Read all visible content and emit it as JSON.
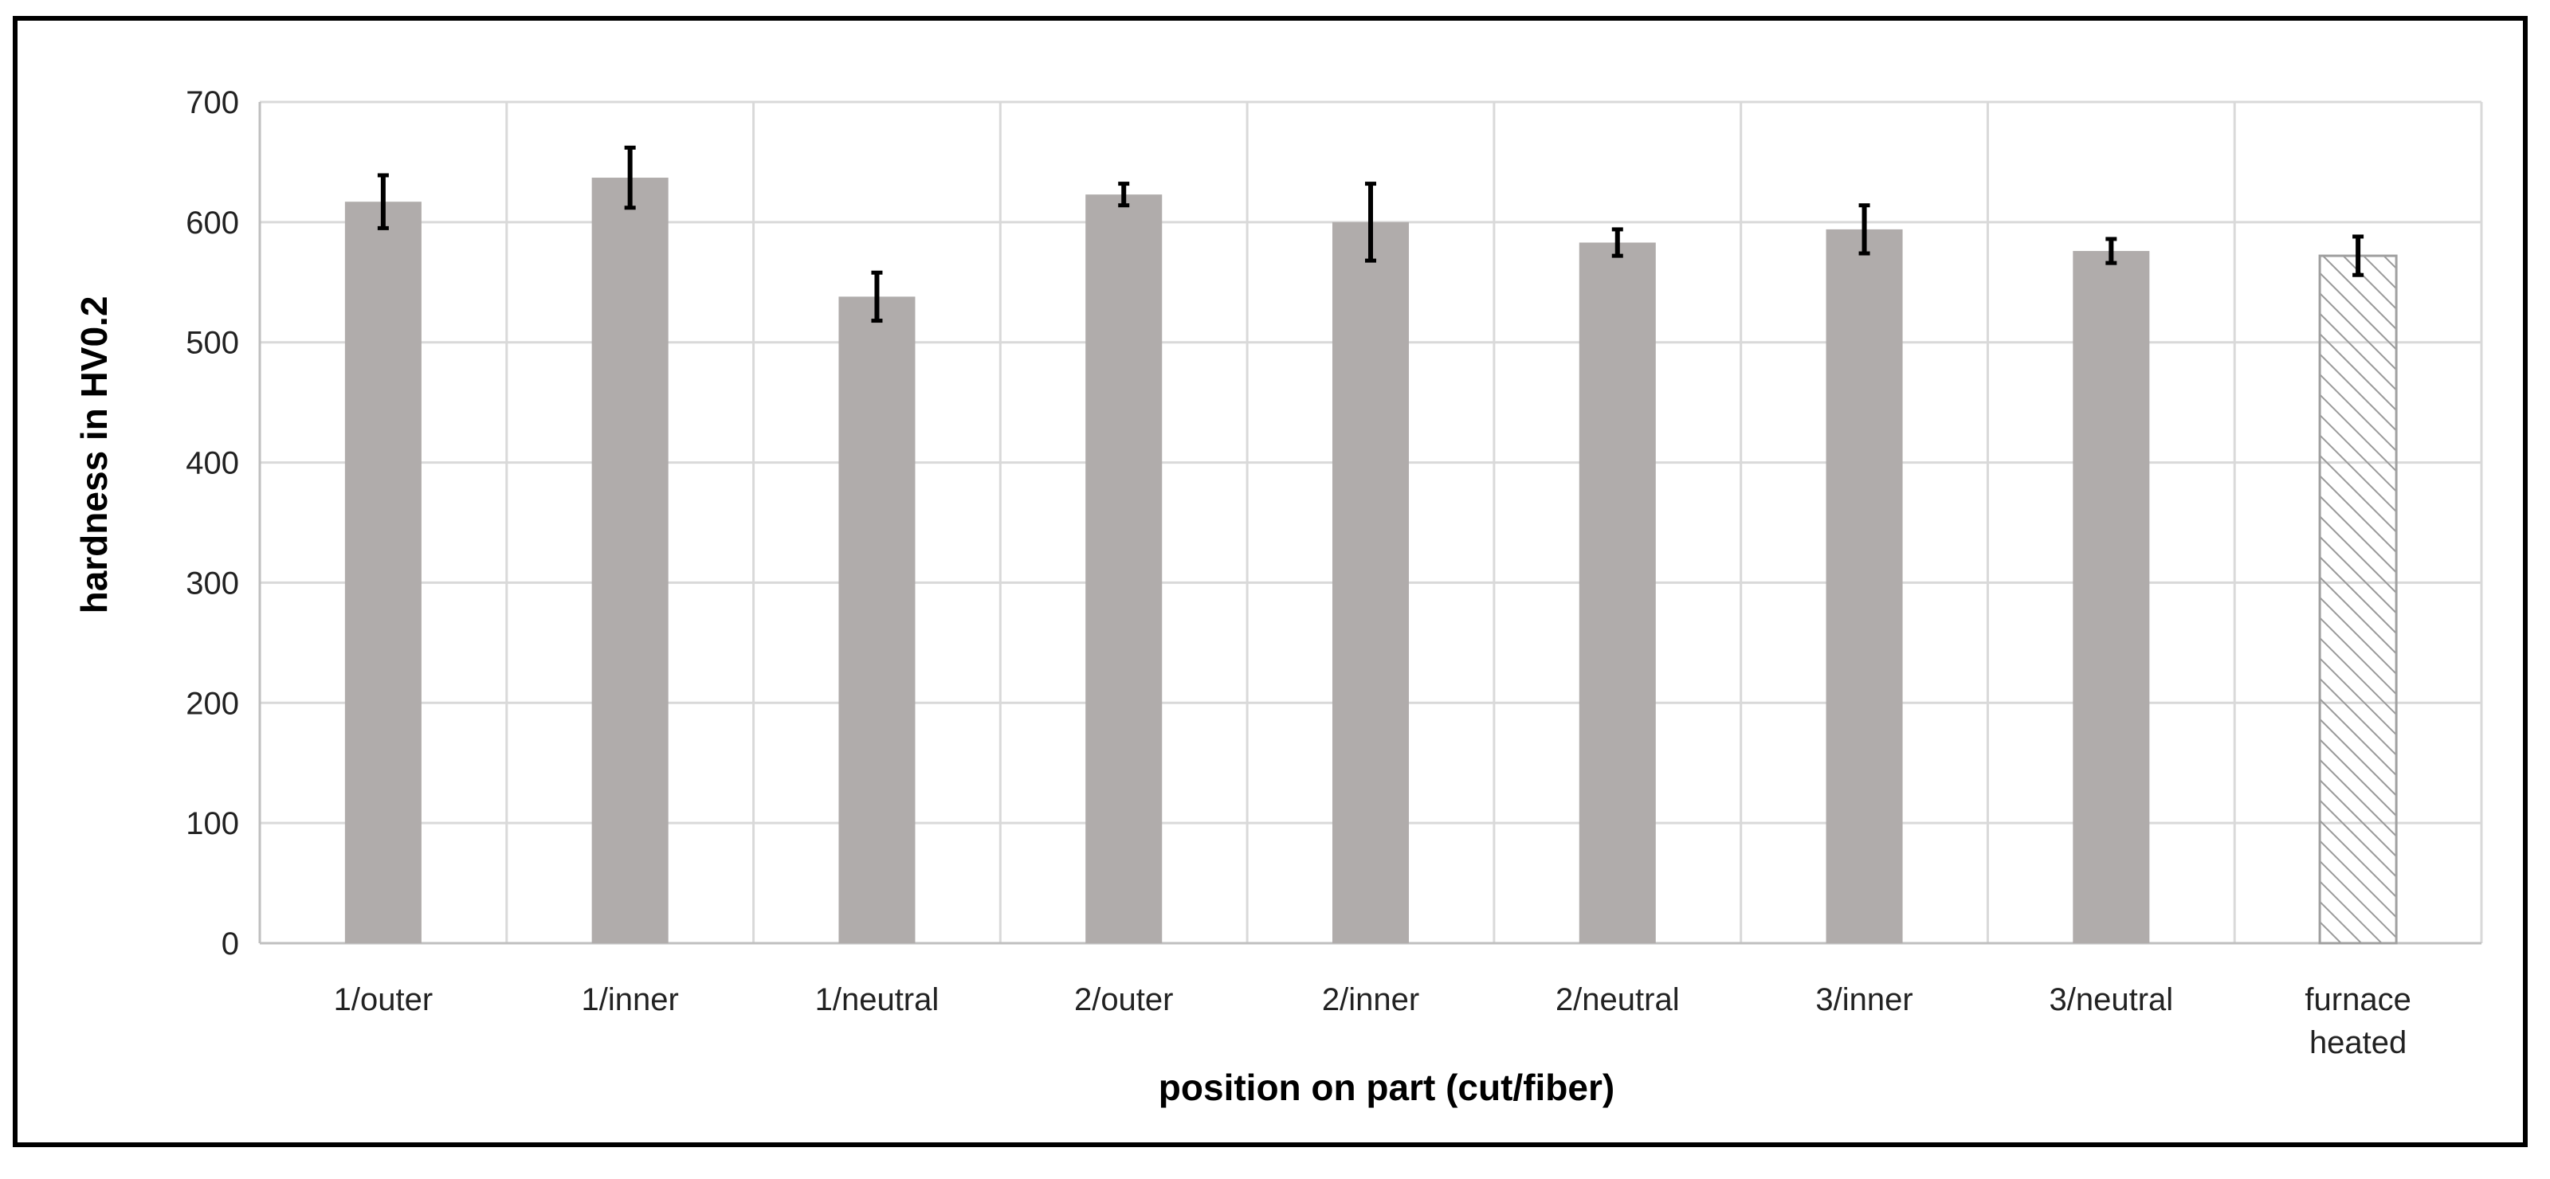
{
  "chart_data": {
    "type": "bar",
    "title": "",
    "xlabel": "position on part (cut/fiber)",
    "ylabel": "hardness in HV0.2",
    "ylim": [
      0,
      700
    ],
    "yticks": [
      0,
      100,
      200,
      300,
      400,
      500,
      600,
      700
    ],
    "grid": true,
    "legend": "none",
    "categories": [
      [
        "1/outer"
      ],
      [
        "1/inner"
      ],
      [
        "1/neutral"
      ],
      [
        "2/outer"
      ],
      [
        "2/inner"
      ],
      [
        "2/neutral"
      ],
      [
        "3/inner"
      ],
      [
        "3/neutral"
      ],
      [
        "furnace",
        "heated"
      ]
    ],
    "values": [
      617,
      637,
      538,
      623,
      600,
      583,
      594,
      576,
      572
    ],
    "error": [
      22,
      25,
      20,
      9,
      32,
      11,
      20,
      10,
      16
    ],
    "bar_styles": [
      "solid",
      "solid",
      "solid",
      "solid",
      "solid",
      "solid",
      "solid",
      "solid",
      "hatched"
    ],
    "colors": {
      "bar": "#b0acab",
      "hatch": "#9a9a9a",
      "grid": "#d9d9d9",
      "axis": "#bfbfbf",
      "error": "#000000"
    }
  }
}
